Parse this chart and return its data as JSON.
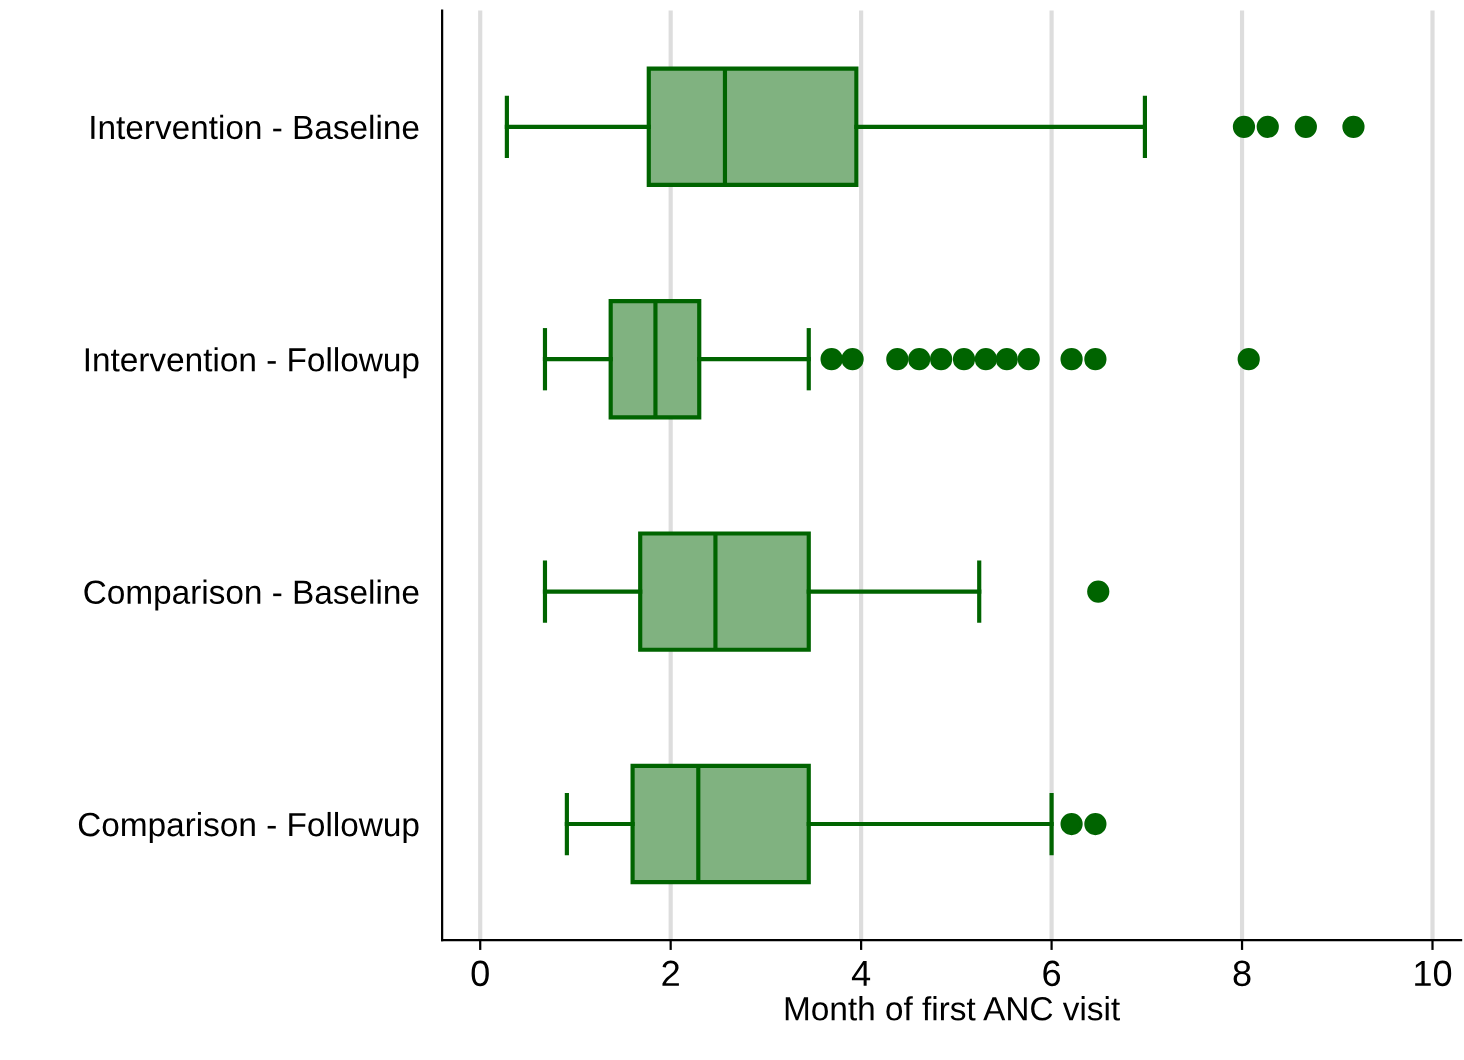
{
  "chart_data": {
    "type": "box",
    "orientation": "horizontal",
    "xlabel": "Month of first ANC visit",
    "categories": [
      "Intervention - Baseline",
      "Intervention - Followup",
      "Comparison - Baseline",
      "Comparison - Followup"
    ],
    "boxes": [
      {
        "low": 0.28,
        "q1": 1.77,
        "median": 2.57,
        "q3": 3.95,
        "high": 6.98,
        "outliers": [
          8.02,
          8.27,
          8.67,
          9.17
        ]
      },
      {
        "low": 0.68,
        "q1": 1.37,
        "median": 1.84,
        "q3": 2.3,
        "high": 3.45,
        "outliers": [
          3.69,
          3.91,
          4.38,
          4.61,
          4.84,
          5.08,
          5.31,
          5.53,
          5.76,
          6.21,
          6.46,
          8.07
        ]
      },
      {
        "low": 0.68,
        "q1": 1.68,
        "median": 2.47,
        "q3": 3.45,
        "high": 5.24,
        "outliers": [
          6.49
        ]
      },
      {
        "low": 0.91,
        "q1": 1.6,
        "median": 2.29,
        "q3": 3.45,
        "high": 6.0,
        "outliers": [
          6.21,
          6.46
        ]
      }
    ],
    "color": "#80b280",
    "xlim": [
      -0.4,
      10.3
    ],
    "xticks": [
      0,
      2,
      4,
      6,
      8,
      10
    ],
    "grid": "x"
  }
}
